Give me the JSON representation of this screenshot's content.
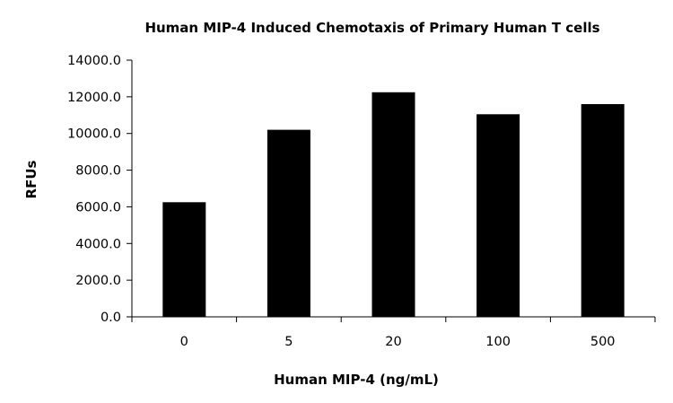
{
  "chart_data": {
    "type": "bar",
    "title": "Human MIP-4 Induced Chemotaxis of Primary Human T cells",
    "xlabel": "Human MIP-4 (ng/mL)",
    "ylabel": "RFUs",
    "categories": [
      "0",
      "5",
      "20",
      "100",
      "500"
    ],
    "values": [
      6250,
      10200,
      12250,
      11050,
      11600
    ],
    "ylim": [
      0,
      14000
    ],
    "yticks": [
      0,
      2000,
      4000,
      6000,
      8000,
      10000,
      12000,
      14000
    ],
    "ytick_labels": [
      "0.0",
      "2000.0",
      "4000.0",
      "6000.0",
      "8000.0",
      "10000.0",
      "12000.0",
      "14000.0"
    ],
    "grid": false,
    "legend": "none",
    "colors": {
      "bar": "#000000",
      "axis": "#000000",
      "background": "#ffffff"
    }
  }
}
